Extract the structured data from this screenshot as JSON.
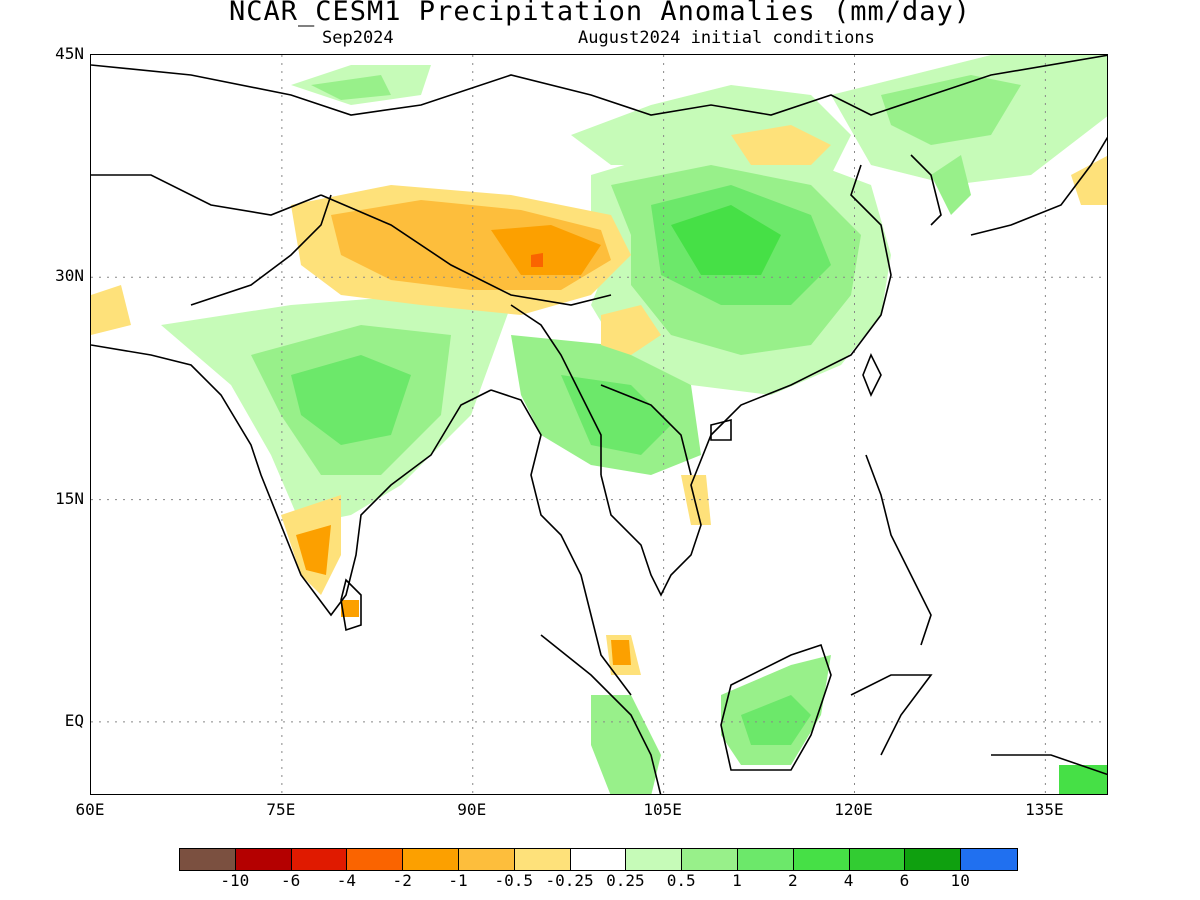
{
  "header": {
    "title": "NCAR_CESM1 Precipitation Anomalies (mm/day)",
    "valid_month": "Sep2024",
    "init_conditions": "August2024 initial conditions"
  },
  "map": {
    "lat_labels": [
      "45N",
      "30N",
      "15N",
      "EQ"
    ],
    "lon_labels": [
      "60E",
      "75E",
      "90E",
      "105E",
      "120E",
      "135E"
    ],
    "lat_values": [
      45,
      30,
      15,
      0
    ],
    "lon_values": [
      60,
      75,
      90,
      105,
      120,
      135
    ],
    "extent": {
      "lon_min": 60,
      "lon_max": 140,
      "lat_min": -5,
      "lat_max": 45
    },
    "gridlines": "dotted",
    "anomaly_regions": [
      {
        "region": "Tibetan Plateau",
        "sign": "negative",
        "level": "-1 to -2"
      },
      {
        "region": "Central-East China",
        "sign": "positive",
        "level": "1 to 2"
      },
      {
        "region": "Central India",
        "sign": "positive",
        "level": "1 to 2"
      },
      {
        "region": "Southern India",
        "sign": "negative",
        "level": "-1 to -2"
      },
      {
        "region": "Myanmar / Thailand / Laos",
        "sign": "positive",
        "level": "0.5 to 2"
      },
      {
        "region": "Borneo",
        "sign": "positive",
        "level": "0.5 to 2"
      },
      {
        "region": "Malay Peninsula",
        "sign": "negative",
        "level": "-1 to -2"
      },
      {
        "region": "Korea / Northeast China",
        "sign": "positive",
        "level": "0.5 to 1"
      },
      {
        "region": "Yellow Sea coast",
        "sign": "negative",
        "level": "-0.5 to -1"
      }
    ]
  },
  "colorbar": {
    "colors": [
      "#7b5040",
      "#b40000",
      "#e01a00",
      "#fa6400",
      "#fca000",
      "#fdbe3c",
      "#fee17a",
      "#ffffff",
      "#c6fbb8",
      "#98f08a",
      "#6ce86a",
      "#46e046",
      "#32cc32",
      "#0fa00f",
      "#2070f0"
    ],
    "labels": [
      "-10",
      "-6",
      "-4",
      "-2",
      "-1",
      "-0.5",
      "-0.25",
      "0.25",
      "0.5",
      "1",
      "2",
      "4",
      "6",
      "10"
    ]
  }
}
